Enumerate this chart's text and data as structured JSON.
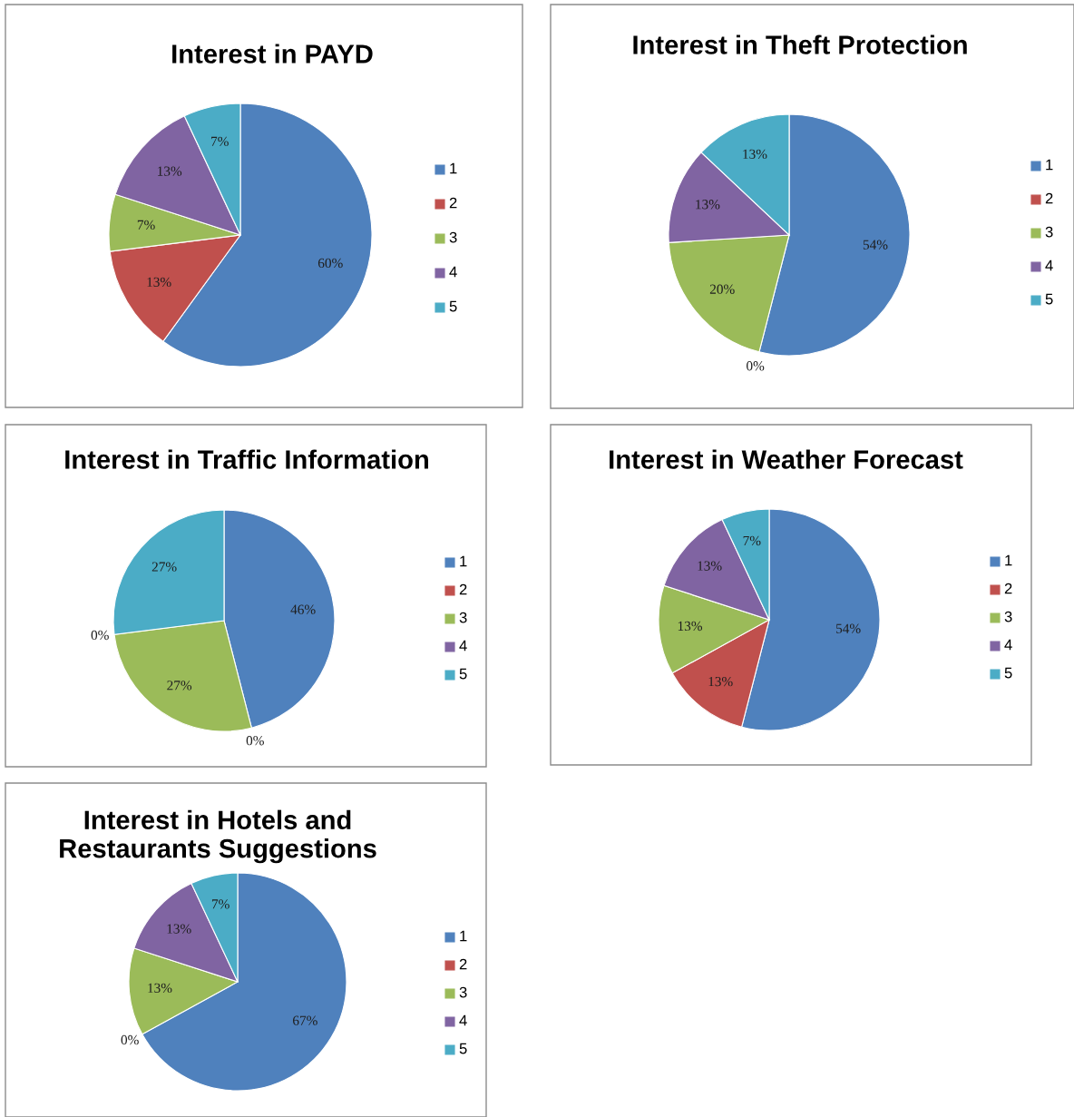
{
  "chart_data": [
    {
      "type": "pie",
      "title": "Interest in PAYD",
      "categories": [
        "1",
        "2",
        "3",
        "4",
        "5"
      ],
      "values": [
        60,
        13,
        7,
        13,
        7
      ],
      "value_labels": [
        "60%",
        "13%",
        "7%",
        "13%",
        "7%"
      ],
      "colors": [
        "#4f81bd",
        "#c0504d",
        "#9bbb59",
        "#8064a2",
        "#4bacc6"
      ],
      "legend": "right"
    },
    {
      "type": "pie",
      "title": "Interest in Theft Protection",
      "categories": [
        "1",
        "2",
        "3",
        "4",
        "5"
      ],
      "values": [
        54,
        0,
        20,
        13,
        13
      ],
      "value_labels": [
        "54%",
        "0%",
        "20%",
        "13%",
        "13%"
      ],
      "colors": [
        "#4f81bd",
        "#c0504d",
        "#9bbb59",
        "#8064a2",
        "#4bacc6"
      ],
      "legend": "right"
    },
    {
      "type": "pie",
      "title": "Interest in Traffic Information",
      "categories": [
        "1",
        "2",
        "3",
        "4",
        "5"
      ],
      "values": [
        46,
        0,
        27,
        0,
        27
      ],
      "value_labels": [
        "46%",
        "0%",
        "27%",
        "0%",
        "27%"
      ],
      "colors": [
        "#4f81bd",
        "#c0504d",
        "#9bbb59",
        "#8064a2",
        "#4bacc6"
      ],
      "legend": "right"
    },
    {
      "type": "pie",
      "title": "Interest in Weather Forecast",
      "categories": [
        "1",
        "2",
        "3",
        "4",
        "5"
      ],
      "values": [
        54,
        13,
        13,
        13,
        7
      ],
      "value_labels": [
        "54%",
        "13%",
        "13%",
        "13%",
        "7%"
      ],
      "colors": [
        "#4f81bd",
        "#c0504d",
        "#9bbb59",
        "#8064a2",
        "#4bacc6"
      ],
      "legend": "right"
    },
    {
      "type": "pie",
      "title": "Interest in Hotels and Restaurants Suggestions",
      "categories": [
        "1",
        "2",
        "3",
        "4",
        "5"
      ],
      "values": [
        67,
        0,
        13,
        13,
        7
      ],
      "value_labels": [
        "67%",
        "0%",
        "13%",
        "13%",
        "7%"
      ],
      "colors": [
        "#4f81bd",
        "#c0504d",
        "#9bbb59",
        "#8064a2",
        "#4bacc6"
      ],
      "legend": "right"
    }
  ]
}
